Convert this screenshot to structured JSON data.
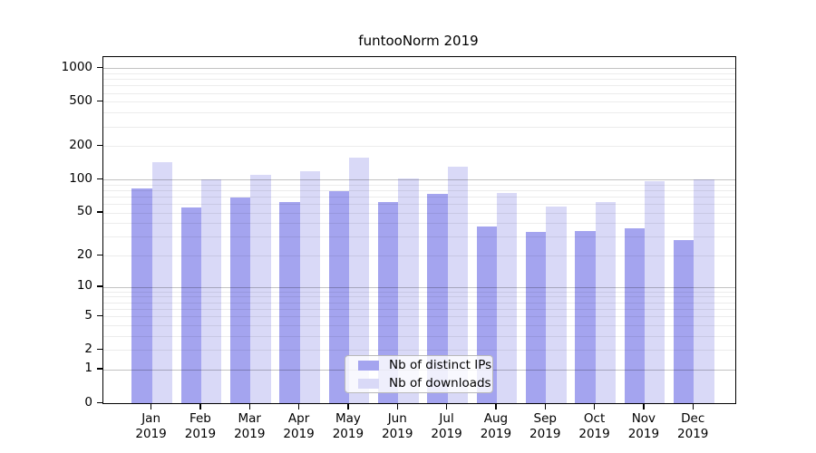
{
  "title": "funtooNorm 2019",
  "legend": {
    "items": [
      {
        "label": "Nb of distinct IPs",
        "color": "#a4a4ef"
      },
      {
        "label": "Nb of downloads",
        "color": "#d9d9f7"
      }
    ]
  },
  "chart_data": {
    "type": "bar",
    "title": "funtooNorm 2019",
    "year_label": "2019",
    "categories": [
      "Jan",
      "Feb",
      "Mar",
      "Apr",
      "May",
      "Jun",
      "Jul",
      "Aug",
      "Sep",
      "Oct",
      "Nov",
      "Dec"
    ],
    "series": [
      {
        "name": "Nb of distinct IPs",
        "color": "#a4a4ef",
        "values": [
          83,
          56,
          69,
          63,
          79,
          63,
          74,
          37,
          33,
          34,
          36,
          28
        ]
      },
      {
        "name": "Nb of downloads",
        "color": "#d9d9f7",
        "values": [
          143,
          100,
          111,
          118,
          158,
          102,
          130,
          75,
          57,
          62,
          97,
          101
        ]
      }
    ],
    "xlabel": "",
    "ylabel": "",
    "y_scale": "log10(value+1)",
    "y_ticks": [
      0,
      1,
      2,
      5,
      10,
      20,
      50,
      100,
      200,
      500,
      1000
    ],
    "ylim": [
      0,
      1250
    ],
    "grid": "horizontal, minor log gridlines 2-9 per decade, major at powers of 10",
    "legend_position": "bottom-center-inside",
    "colors": {
      "bar_distinct_ips": "#a4a4ef",
      "bar_downloads": "#d9d9f7",
      "grid_major": "#c3c3c3",
      "grid_minor": "#ececec",
      "axis": "#000000",
      "background": "#ffffff"
    }
  }
}
